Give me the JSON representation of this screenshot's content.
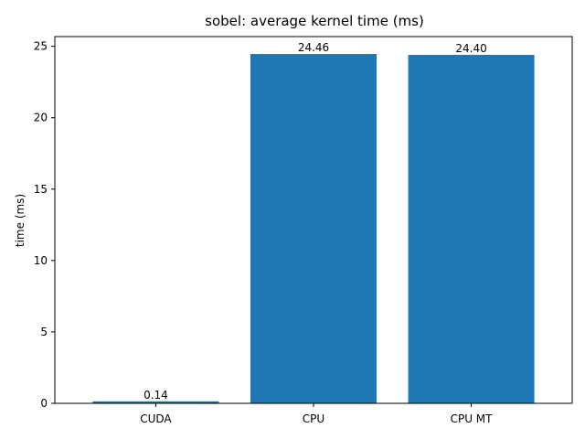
{
  "chart_data": {
    "type": "bar",
    "title": "sobel: average kernel time (ms)",
    "xlabel": "",
    "ylabel": "time (ms)",
    "categories": [
      "CUDA",
      "CPU",
      "CPU MT"
    ],
    "values": [
      0.14,
      24.46,
      24.4
    ],
    "data_labels": [
      "0.14",
      "24.46",
      "24.40"
    ],
    "ylim": [
      0,
      25.68
    ],
    "yticks": [
      0,
      5,
      10,
      15,
      20,
      25
    ],
    "grid": false,
    "legend": "none",
    "bar_color": "#1f77b4"
  }
}
